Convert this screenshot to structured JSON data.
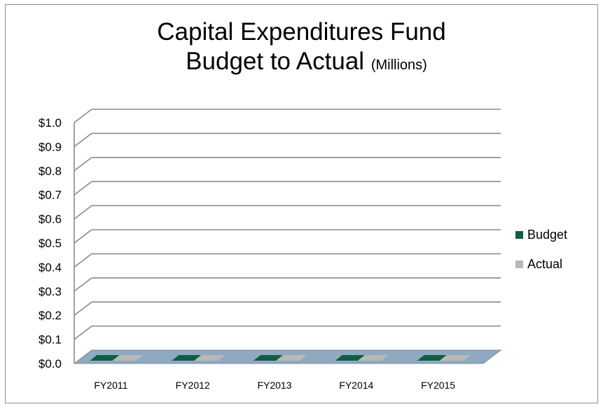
{
  "chart_data": {
    "type": "bar",
    "title": "Capital Expenditures Fund",
    "subtitle": "Budget to Actual",
    "subtitle_unit": "(Millions)",
    "categories": [
      "FY2011",
      "FY2012",
      "FY2013",
      "FY2014",
      "FY2015"
    ],
    "series": [
      {
        "name": "Budget",
        "values": [
          0,
          0,
          0,
          0,
          0
        ],
        "color": "#0e5e44"
      },
      {
        "name": "Actual",
        "values": [
          0,
          0,
          0,
          0,
          0
        ],
        "color": "#b8b8b8"
      }
    ],
    "yticks": [
      "$0.0",
      "$0.1",
      "$0.2",
      "$0.3",
      "$0.4",
      "$0.5",
      "$0.6",
      "$0.7",
      "$0.8",
      "$0.9",
      "$1.0"
    ],
    "ylim": [
      0,
      1.0
    ],
    "grid": true,
    "legend": "right",
    "floor_color": "#8faac0"
  }
}
